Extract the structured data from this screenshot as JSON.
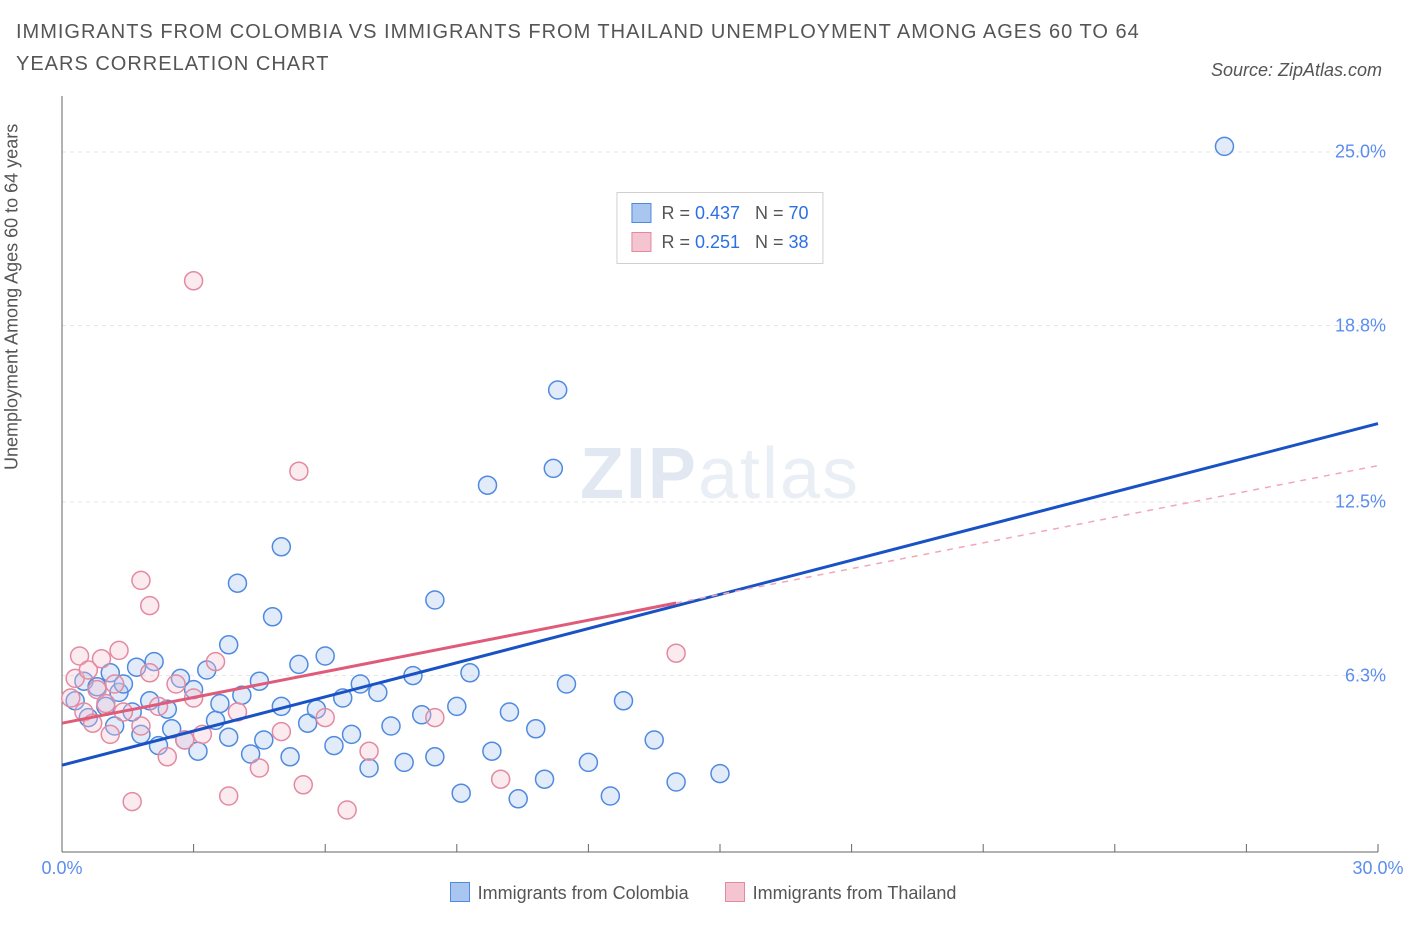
{
  "title_text": "IMMIGRANTS FROM COLOMBIA VS IMMIGRANTS FROM THAILAND UNEMPLOYMENT AMONG AGES 60 TO 64 YEARS CORRELATION CHART",
  "source_label": "Source: ZipAtlas.com",
  "ylabel": "Unemployment Among Ages 60 to 64 years",
  "watermark_a": "ZIP",
  "watermark_b": "atlas",
  "chart": {
    "type": "scatter",
    "background_color": "#ffffff",
    "grid_color": "#e4e4e4",
    "axis_color": "#666666",
    "tick_label_color": "#5b8def",
    "xlim": [
      0,
      30
    ],
    "ylim": [
      0,
      27
    ],
    "x_tick_positions": [
      0,
      3,
      6,
      9,
      12,
      15,
      18,
      21,
      24,
      27,
      30
    ],
    "x_tick_labels": {
      "0": "0.0%",
      "30": "30.0%"
    },
    "y_tick_positions": [
      6.3,
      12.5,
      18.8,
      25.0
    ],
    "y_tick_labels": [
      "6.3%",
      "12.5%",
      "18.8%",
      "25.0%"
    ],
    "y_grid_positions": [
      6.3,
      12.5,
      18.8,
      25.0
    ],
    "marker_radius": 9,
    "marker_fill_opacity": 0.35,
    "marker_stroke_width": 1.5,
    "trend_line_width": 3
  },
  "series": [
    {
      "key": "colombia",
      "label": "Immigrants from Colombia",
      "color_stroke": "#4f8ae0",
      "color_fill": "#a9c6f0",
      "trend_color": "#1952c4",
      "trend_dash_extend_color": "#1952c4",
      "R": "0.437",
      "N": "70",
      "trend": {
        "x0": 0,
        "y0": 3.1,
        "x1": 30,
        "y1": 15.3,
        "solid_until_x": 30
      },
      "points": [
        [
          0.3,
          5.4
        ],
        [
          0.5,
          6.1
        ],
        [
          0.6,
          4.8
        ],
        [
          0.8,
          5.9
        ],
        [
          1.0,
          5.2
        ],
        [
          1.1,
          6.4
        ],
        [
          1.2,
          4.5
        ],
        [
          1.3,
          5.7
        ],
        [
          1.4,
          6.0
        ],
        [
          1.6,
          5.0
        ],
        [
          1.7,
          6.6
        ],
        [
          1.8,
          4.2
        ],
        [
          2.0,
          5.4
        ],
        [
          2.1,
          6.8
        ],
        [
          2.2,
          3.8
        ],
        [
          2.4,
          5.1
        ],
        [
          2.5,
          4.4
        ],
        [
          2.7,
          6.2
        ],
        [
          2.8,
          4.0
        ],
        [
          3.0,
          5.8
        ],
        [
          3.1,
          3.6
        ],
        [
          3.3,
          6.5
        ],
        [
          3.5,
          4.7
        ],
        [
          3.6,
          5.3
        ],
        [
          3.8,
          7.4
        ],
        [
          3.8,
          4.1
        ],
        [
          4.0,
          9.6
        ],
        [
          4.1,
          5.6
        ],
        [
          4.3,
          3.5
        ],
        [
          4.5,
          6.1
        ],
        [
          4.6,
          4.0
        ],
        [
          4.8,
          8.4
        ],
        [
          5.0,
          5.2
        ],
        [
          5.0,
          10.9
        ],
        [
          5.2,
          3.4
        ],
        [
          5.4,
          6.7
        ],
        [
          5.6,
          4.6
        ],
        [
          5.8,
          5.1
        ],
        [
          6.0,
          7.0
        ],
        [
          6.2,
          3.8
        ],
        [
          6.4,
          5.5
        ],
        [
          6.6,
          4.2
        ],
        [
          6.8,
          6.0
        ],
        [
          7.0,
          3.0
        ],
        [
          7.2,
          5.7
        ],
        [
          7.5,
          4.5
        ],
        [
          7.8,
          3.2
        ],
        [
          8.0,
          6.3
        ],
        [
          8.2,
          4.9
        ],
        [
          8.5,
          9.0
        ],
        [
          8.5,
          3.4
        ],
        [
          9.0,
          5.2
        ],
        [
          9.1,
          2.1
        ],
        [
          9.3,
          6.4
        ],
        [
          9.7,
          13.1
        ],
        [
          9.8,
          3.6
        ],
        [
          10.2,
          5.0
        ],
        [
          10.4,
          1.9
        ],
        [
          10.8,
          4.4
        ],
        [
          11.0,
          2.6
        ],
        [
          11.2,
          13.7
        ],
        [
          11.3,
          16.5
        ],
        [
          11.5,
          6.0
        ],
        [
          12.0,
          3.2
        ],
        [
          12.5,
          2.0
        ],
        [
          12.8,
          5.4
        ],
        [
          13.5,
          4.0
        ],
        [
          14.0,
          2.5
        ],
        [
          15.0,
          2.8
        ],
        [
          26.5,
          25.2
        ]
      ]
    },
    {
      "key": "thailand",
      "label": "Immigrants from Thailand",
      "color_stroke": "#e48aa0",
      "color_fill": "#f4c4d0",
      "trend_color": "#e05a7a",
      "trend_dash_extend_color": "#f0a8b8",
      "R": "0.251",
      "N": "38",
      "trend": {
        "x0": 0,
        "y0": 4.6,
        "x1": 30,
        "y1": 13.8,
        "solid_until_x": 14
      },
      "points": [
        [
          0.2,
          5.5
        ],
        [
          0.3,
          6.2
        ],
        [
          0.4,
          7.0
        ],
        [
          0.5,
          5.0
        ],
        [
          0.6,
          6.5
        ],
        [
          0.7,
          4.6
        ],
        [
          0.8,
          5.8
        ],
        [
          0.9,
          6.9
        ],
        [
          1.0,
          5.3
        ],
        [
          1.1,
          4.2
        ],
        [
          1.2,
          6.0
        ],
        [
          1.3,
          7.2
        ],
        [
          1.4,
          5.0
        ],
        [
          1.6,
          1.8
        ],
        [
          1.8,
          9.7
        ],
        [
          1.8,
          4.5
        ],
        [
          2.0,
          6.4
        ],
        [
          2.0,
          8.8
        ],
        [
          2.2,
          5.2
        ],
        [
          2.4,
          3.4
        ],
        [
          2.6,
          6.0
        ],
        [
          2.8,
          4.0
        ],
        [
          3.0,
          5.5
        ],
        [
          3.0,
          20.4
        ],
        [
          3.2,
          4.2
        ],
        [
          3.5,
          6.8
        ],
        [
          3.8,
          2.0
        ],
        [
          4.0,
          5.0
        ],
        [
          4.5,
          3.0
        ],
        [
          5.0,
          4.3
        ],
        [
          5.4,
          13.6
        ],
        [
          5.5,
          2.4
        ],
        [
          6.0,
          4.8
        ],
        [
          6.5,
          1.5
        ],
        [
          7.0,
          3.6
        ],
        [
          8.5,
          4.8
        ],
        [
          10.0,
          2.6
        ],
        [
          14.0,
          7.1
        ]
      ]
    }
  ],
  "legend_top": {
    "R_label": "R =",
    "N_label": "N ="
  }
}
